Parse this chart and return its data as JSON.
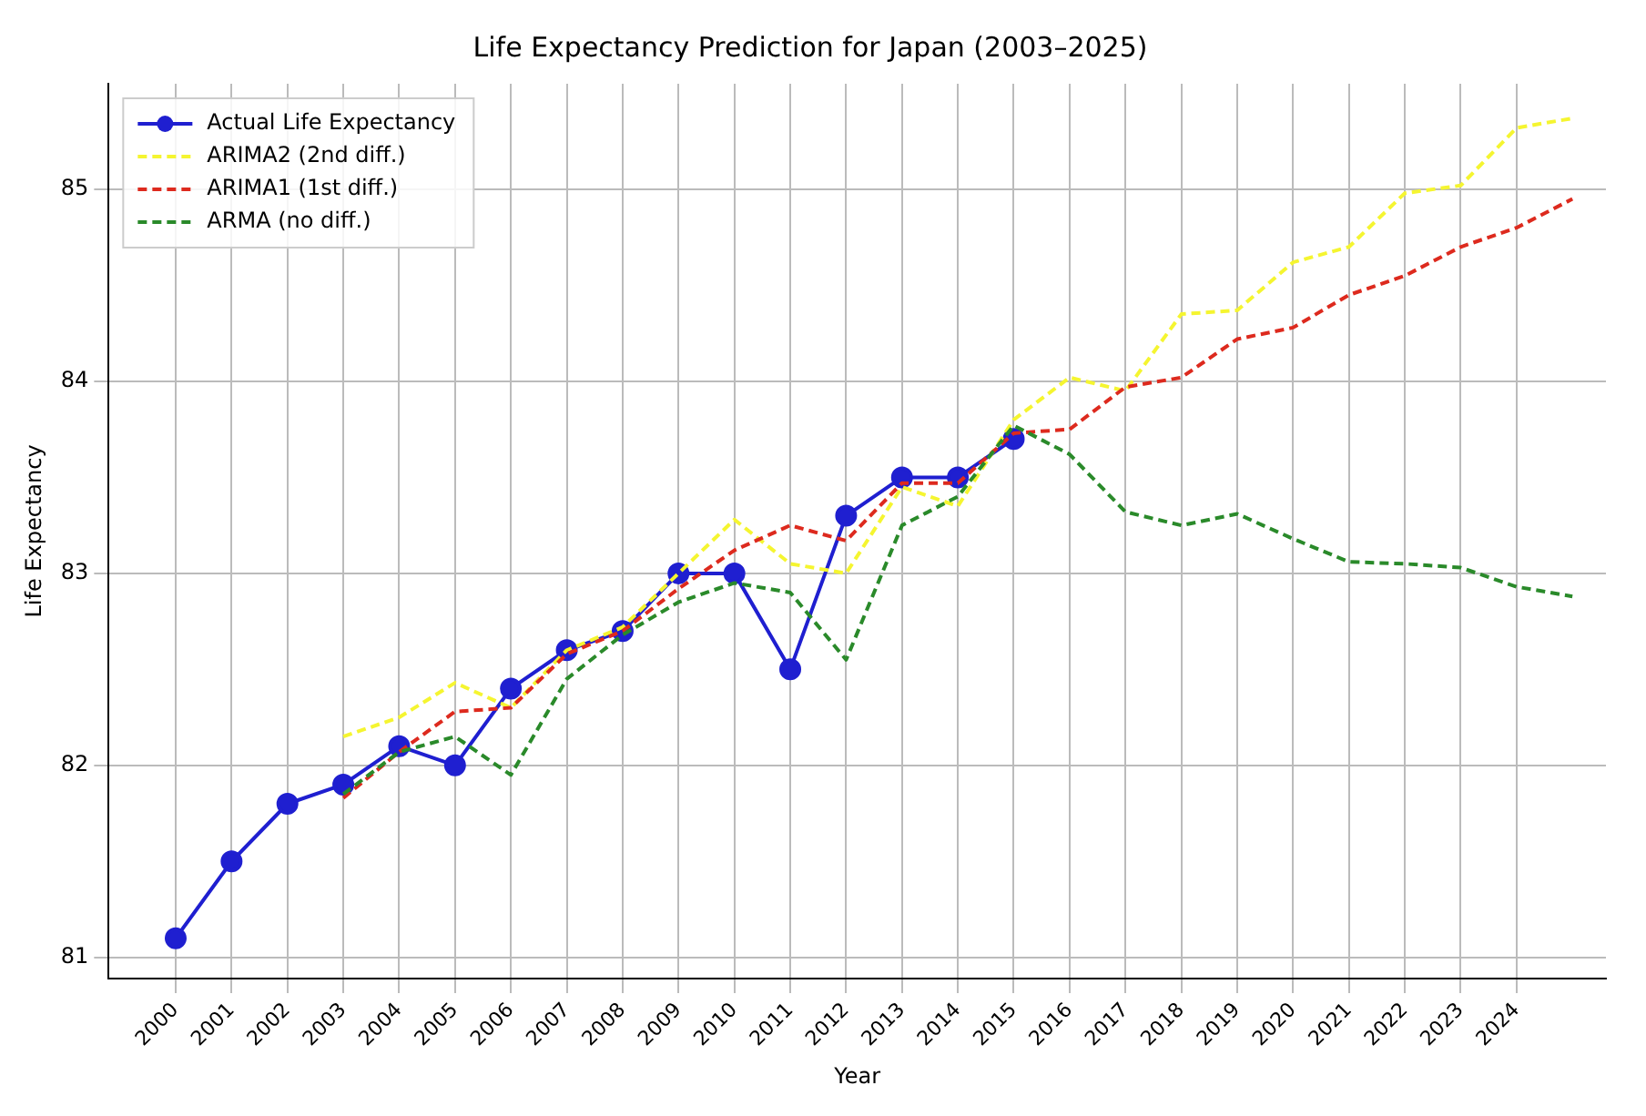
{
  "chart_data": {
    "type": "line",
    "title": "Life Expectancy Prediction for Japan (2003–2025)",
    "xlabel": "Year",
    "ylabel": "Life Expectancy",
    "x": [
      2000,
      2001,
      2002,
      2003,
      2004,
      2005,
      2006,
      2007,
      2008,
      2009,
      2010,
      2011,
      2012,
      2013,
      2014,
      2015,
      2016,
      2017,
      2018,
      2019,
      2020,
      2021,
      2022,
      2023,
      2024,
      2025
    ],
    "xlim": [
      1998.8,
      2025.6
    ],
    "xticks": [
      2000,
      2001,
      2002,
      2003,
      2004,
      2005,
      2006,
      2007,
      2008,
      2009,
      2010,
      2011,
      2012,
      2013,
      2014,
      2015,
      2016,
      2017,
      2018,
      2019,
      2020,
      2021,
      2022,
      2023,
      2024
    ],
    "ylim": [
      80.89,
      85.55
    ],
    "yticks": [
      81,
      82,
      83,
      84,
      85
    ],
    "grid": true,
    "legend": "top left",
    "series": [
      {
        "name": "Actual Life Expectancy",
        "color": "#1f1fd0",
        "marker": "circle",
        "line_style": "solid",
        "values": [
          81.1,
          81.5,
          81.8,
          81.9,
          82.1,
          82.0,
          82.4,
          82.6,
          82.7,
          83.0,
          83.0,
          82.5,
          83.3,
          83.5,
          83.5,
          83.7,
          null,
          null,
          null,
          null,
          null,
          null,
          null,
          null,
          null,
          null
        ]
      },
      {
        "name": "ARIMA2 (2nd diff.)",
        "color": "#f5f530",
        "marker": "none",
        "line_style": "dashed",
        "values": [
          null,
          null,
          null,
          82.15,
          82.25,
          82.43,
          82.3,
          82.6,
          82.72,
          83.0,
          83.28,
          83.05,
          83.0,
          83.45,
          83.35,
          83.8,
          84.02,
          83.95,
          84.35,
          84.37,
          84.62,
          84.7,
          84.98,
          85.02,
          85.32,
          85.37
        ]
      },
      {
        "name": "ARIMA1 (1st diff.)",
        "color": "#dd2a1e",
        "marker": "none",
        "line_style": "dashed",
        "values": [
          null,
          null,
          null,
          81.83,
          82.07,
          82.28,
          82.3,
          82.58,
          82.7,
          82.92,
          83.12,
          83.25,
          83.17,
          83.47,
          83.47,
          83.73,
          83.75,
          83.97,
          84.02,
          84.22,
          84.28,
          84.45,
          84.55,
          84.7,
          84.8,
          84.95
        ]
      },
      {
        "name": "ARMA (no diff.)",
        "color": "#2a8a2a",
        "marker": "none",
        "line_style": "dashed",
        "values": [
          null,
          null,
          null,
          81.85,
          82.07,
          82.15,
          81.95,
          82.45,
          82.68,
          82.85,
          82.95,
          82.9,
          82.55,
          83.25,
          83.4,
          83.77,
          83.62,
          83.32,
          83.25,
          83.31,
          83.18,
          83.06,
          83.05,
          83.03,
          82.93,
          82.88
        ]
      }
    ]
  }
}
